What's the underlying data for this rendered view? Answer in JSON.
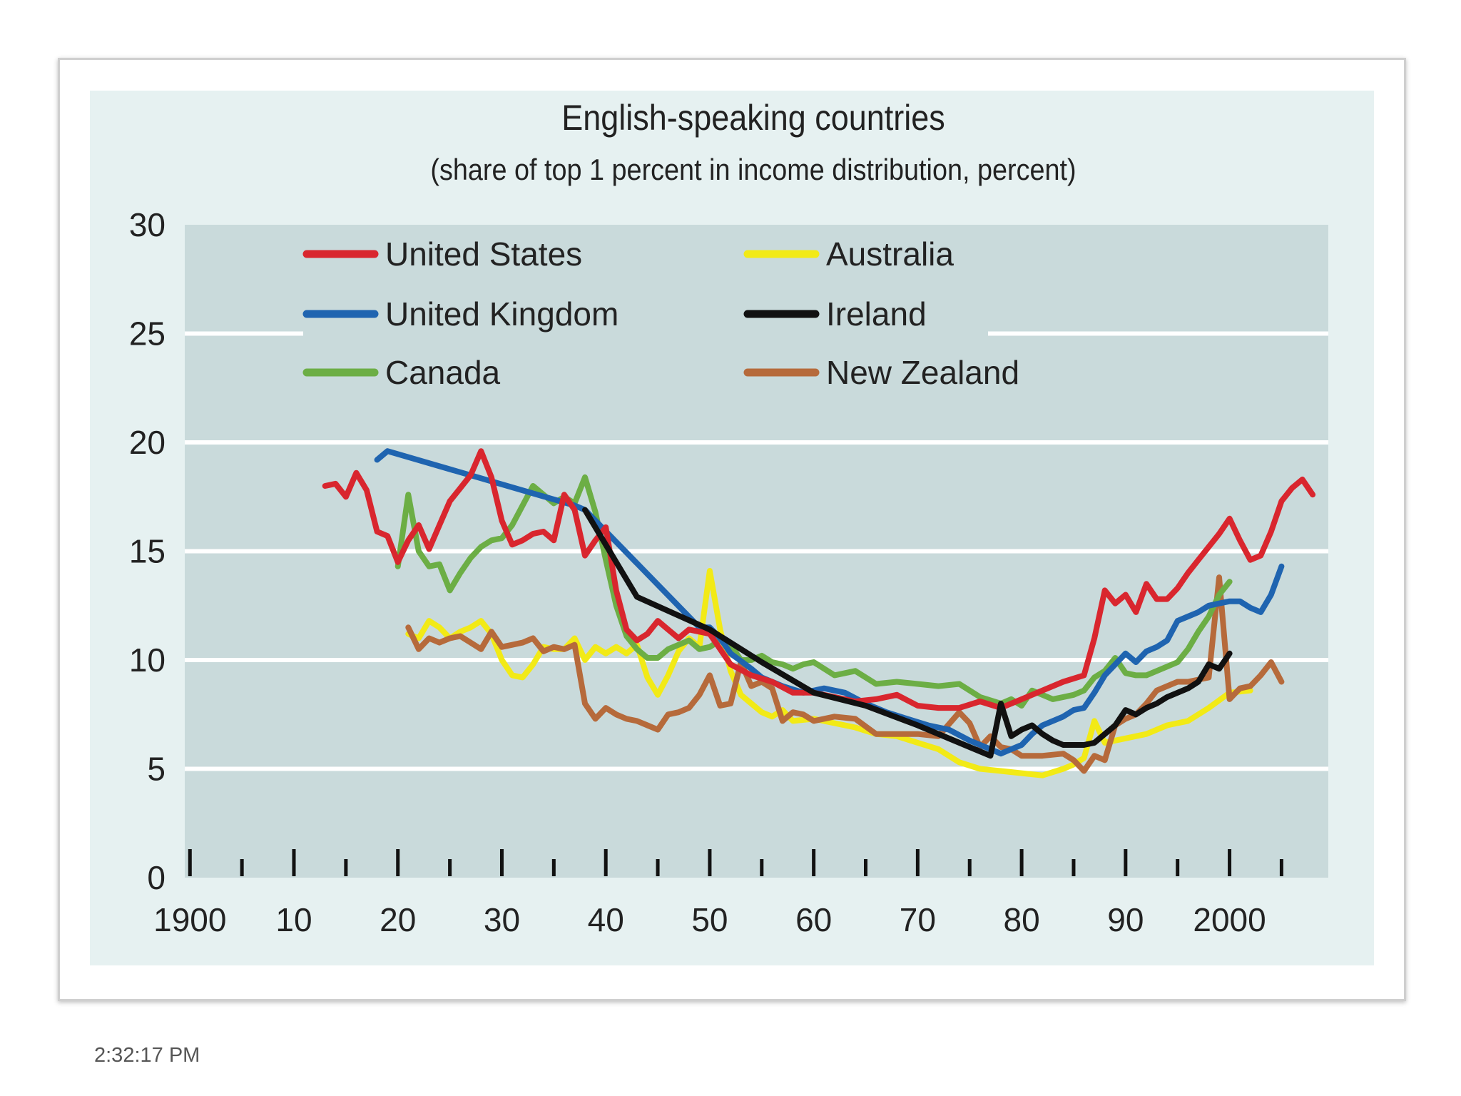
{
  "chart_data": {
    "type": "line",
    "title": "English-speaking countries",
    "subtitle": "(share of top 1 percent in income distribution, percent)",
    "xlabel": "",
    "ylabel": "",
    "xlim": [
      1899.5,
      2009.5
    ],
    "ylim": [
      0,
      30
    ],
    "yticks": [
      0,
      5,
      10,
      15,
      20,
      25,
      30
    ],
    "xticks": [
      1900,
      1910,
      1920,
      1930,
      1940,
      1950,
      1960,
      1970,
      1980,
      1990,
      2000
    ],
    "xtick_labels": [
      "1900",
      "10",
      "20",
      "30",
      "40",
      "50",
      "60",
      "70",
      "80",
      "90",
      "2000"
    ],
    "grid": true,
    "legend_position": "top-left",
    "series": [
      {
        "name": "United States",
        "color": "#d9262e",
        "x": [
          1913,
          1914,
          1915,
          1916,
          1917,
          1918,
          1919,
          1920,
          1921,
          1922,
          1923,
          1924,
          1925,
          1926,
          1927,
          1928,
          1929,
          1930,
          1931,
          1932,
          1933,
          1934,
          1935,
          1936,
          1937,
          1938,
          1939,
          1940,
          1941,
          1942,
          1943,
          1944,
          1945,
          1946,
          1947,
          1948,
          1949,
          1950,
          1952,
          1954,
          1956,
          1958,
          1960,
          1962,
          1964,
          1966,
          1968,
          1970,
          1972,
          1974,
          1976,
          1978,
          1980,
          1982,
          1984,
          1986,
          1987,
          1988,
          1989,
          1990,
          1991,
          1992,
          1993,
          1994,
          1995,
          1996,
          1997,
          1998,
          1999,
          2000,
          2001,
          2002,
          2003,
          2004,
          2005,
          2006,
          2007,
          2008
        ],
        "y": [
          18.0,
          18.1,
          17.5,
          18.6,
          17.8,
          15.9,
          15.7,
          14.5,
          15.5,
          16.2,
          15.1,
          16.2,
          17.3,
          17.9,
          18.5,
          19.6,
          18.4,
          16.4,
          15.3,
          15.5,
          15.8,
          15.9,
          15.5,
          17.6,
          16.9,
          14.8,
          15.5,
          16.1,
          13.2,
          11.4,
          10.9,
          11.2,
          11.8,
          11.4,
          11.0,
          11.4,
          11.3,
          11.2,
          9.8,
          9.3,
          9.0,
          8.5,
          8.5,
          8.3,
          8.1,
          8.2,
          8.4,
          7.9,
          7.8,
          7.8,
          8.1,
          7.8,
          8.2,
          8.6,
          9.0,
          9.3,
          11.0,
          13.2,
          12.6,
          13.0,
          12.2,
          13.5,
          12.8,
          12.8,
          13.3,
          14.0,
          14.6,
          15.2,
          15.8,
          16.5,
          15.5,
          14.6,
          14.8,
          15.9,
          17.3,
          17.9,
          18.3,
          17.6
        ]
      },
      {
        "name": "United Kingdom",
        "color": "#1f64b0",
        "x": [
          1918,
          1919,
          1937,
          1938,
          1949,
          1950,
          1951,
          1952,
          1954,
          1955,
          1957,
          1959,
          1961,
          1963,
          1965,
          1967,
          1969,
          1971,
          1973,
          1975,
          1977,
          1978,
          1979,
          1980,
          1981,
          1982,
          1983,
          1984,
          1985,
          1986,
          1987,
          1988,
          1989,
          1990,
          1991,
          1992,
          1993,
          1994,
          1995,
          1996,
          1997,
          1998,
          1999,
          2000,
          2001,
          2002,
          2003,
          2004,
          2005
        ],
        "y": [
          19.2,
          19.6,
          17.1,
          16.9,
          11.5,
          11.5,
          11.0,
          10.3,
          9.6,
          9.2,
          8.8,
          8.5,
          8.7,
          8.5,
          8.0,
          7.6,
          7.3,
          7.0,
          6.8,
          6.3,
          5.9,
          5.7,
          5.9,
          6.1,
          6.6,
          7.0,
          7.2,
          7.4,
          7.7,
          7.8,
          8.5,
          9.3,
          9.8,
          10.3,
          9.9,
          10.4,
          10.6,
          10.9,
          11.8,
          12.0,
          12.2,
          12.5,
          12.6,
          12.7,
          12.7,
          12.4,
          12.2,
          13.0,
          14.3
        ]
      },
      {
        "name": "Canada",
        "color": "#6cae45",
        "x": [
          1920,
          1921,
          1922,
          1923,
          1924,
          1925,
          1926,
          1927,
          1928,
          1929,
          1930,
          1931,
          1932,
          1933,
          1934,
          1935,
          1936,
          1937,
          1938,
          1939,
          1940,
          1941,
          1942,
          1943,
          1944,
          1945,
          1946,
          1947,
          1948,
          1949,
          1950,
          1951,
          1952,
          1953,
          1954,
          1955,
          1956,
          1957,
          1958,
          1959,
          1960,
          1962,
          1964,
          1966,
          1968,
          1970,
          1972,
          1974,
          1976,
          1978,
          1979,
          1980,
          1981,
          1982,
          1983,
          1984,
          1985,
          1986,
          1987,
          1988,
          1989,
          1990,
          1991,
          1992,
          1993,
          1994,
          1995,
          1996,
          1997,
          1998,
          1999,
          2000
        ],
        "y": [
          14.3,
          17.6,
          15.0,
          14.3,
          14.4,
          13.2,
          14.0,
          14.7,
          15.2,
          15.5,
          15.6,
          16.2,
          17.1,
          18.0,
          17.6,
          17.2,
          17.5,
          17.2,
          18.4,
          16.8,
          14.6,
          12.5,
          11.1,
          10.5,
          10.1,
          10.1,
          10.5,
          10.7,
          10.9,
          10.5,
          10.6,
          10.9,
          10.7,
          10.0,
          10.0,
          10.2,
          9.9,
          9.8,
          9.6,
          9.8,
          9.9,
          9.3,
          9.5,
          8.9,
          9.0,
          8.9,
          8.8,
          8.9,
          8.3,
          8.0,
          8.2,
          7.9,
          8.6,
          8.4,
          8.2,
          8.3,
          8.4,
          8.6,
          9.2,
          9.5,
          10.1,
          9.4,
          9.3,
          9.3,
          9.5,
          9.7,
          9.9,
          10.5,
          11.3,
          12.0,
          13.0,
          13.6
        ]
      },
      {
        "name": "Australia",
        "color": "#f2ea16",
        "x": [
          1921,
          1922,
          1923,
          1924,
          1925,
          1926,
          1927,
          1928,
          1929,
          1930,
          1931,
          1932,
          1933,
          1934,
          1935,
          1936,
          1937,
          1938,
          1939,
          1940,
          1941,
          1942,
          1943,
          1944,
          1945,
          1946,
          1947,
          1948,
          1949,
          1950,
          1951,
          1952,
          1953,
          1954,
          1955,
          1956,
          1957,
          1958,
          1960,
          1962,
          1964,
          1966,
          1968,
          1970,
          1972,
          1974,
          1976,
          1978,
          1980,
          1982,
          1984,
          1985,
          1986,
          1987,
          1988,
          1989,
          1990,
          1992,
          1994,
          1996,
          1998,
          2000,
          2002
        ],
        "y": [
          11.2,
          11.0,
          11.8,
          11.5,
          11.0,
          11.3,
          11.5,
          11.8,
          11.2,
          10.0,
          9.3,
          9.2,
          9.8,
          10.6,
          10.5,
          10.5,
          11.0,
          10.0,
          10.6,
          10.3,
          10.6,
          10.3,
          10.7,
          9.2,
          8.4,
          9.3,
          10.4,
          11.0,
          10.6,
          14.1,
          11.4,
          9.5,
          8.4,
          8.0,
          7.6,
          7.4,
          7.7,
          7.2,
          7.3,
          7.1,
          6.9,
          6.6,
          6.5,
          6.2,
          5.9,
          5.3,
          5.0,
          4.9,
          4.8,
          4.7,
          5.0,
          5.2,
          5.5,
          7.2,
          6.2,
          6.3,
          6.4,
          6.6,
          7.0,
          7.2,
          7.8,
          8.5,
          8.6
        ]
      },
      {
        "name": "Ireland",
        "color": "#111111",
        "x": [
          1938,
          1943,
          1950,
          1955,
          1960,
          1965,
          1970,
          1975,
          1977,
          1978,
          1979,
          1980,
          1981,
          1982,
          1983,
          1984,
          1985,
          1986,
          1987,
          1988,
          1989,
          1990,
          1991,
          1992,
          1993,
          1994,
          1995,
          1996,
          1997,
          1998,
          1999,
          2000
        ],
        "y": [
          16.9,
          12.9,
          11.4,
          9.9,
          8.5,
          7.9,
          7.0,
          6.0,
          5.6,
          8.0,
          6.5,
          6.8,
          7.0,
          6.6,
          6.3,
          6.1,
          6.1,
          6.1,
          6.2,
          6.6,
          7.0,
          7.7,
          7.5,
          7.8,
          8.0,
          8.3,
          8.5,
          8.7,
          9.0,
          9.8,
          9.6,
          10.3
        ]
      },
      {
        "name": "New Zealand",
        "color": "#b66a3b",
        "x": [
          1921,
          1922,
          1923,
          1924,
          1925,
          1926,
          1927,
          1928,
          1929,
          1930,
          1931,
          1932,
          1933,
          1934,
          1935,
          1936,
          1937,
          1938,
          1939,
          1940,
          1941,
          1942,
          1943,
          1944,
          1945,
          1946,
          1947,
          1948,
          1949,
          1950,
          1951,
          1952,
          1953,
          1954,
          1955,
          1956,
          1957,
          1958,
          1959,
          1960,
          1962,
          1964,
          1966,
          1968,
          1970,
          1972,
          1974,
          1975,
          1976,
          1977,
          1978,
          1979,
          1980,
          1982,
          1984,
          1985,
          1986,
          1987,
          1988,
          1989,
          1990,
          1991,
          1992,
          1993,
          1994,
          1995,
          1996,
          1997,
          1998,
          1999,
          2000,
          2001,
          2002,
          2003,
          2004,
          2005
        ],
        "y": [
          11.5,
          10.5,
          11.0,
          10.8,
          11.0,
          11.1,
          10.8,
          10.5,
          11.3,
          10.6,
          10.7,
          10.8,
          11.0,
          10.4,
          10.6,
          10.5,
          10.7,
          8.0,
          7.3,
          7.8,
          7.5,
          7.3,
          7.2,
          7.0,
          6.8,
          7.5,
          7.6,
          7.8,
          8.4,
          9.3,
          7.9,
          8.0,
          9.9,
          8.8,
          9.0,
          8.7,
          7.2,
          7.6,
          7.5,
          7.2,
          7.4,
          7.3,
          6.6,
          6.6,
          6.6,
          6.5,
          7.6,
          7.1,
          6.0,
          6.5,
          6.0,
          5.9,
          5.6,
          5.6,
          5.7,
          5.4,
          4.9,
          5.6,
          5.4,
          7.0,
          7.3,
          7.5,
          8.0,
          8.6,
          8.8,
          9.0,
          9.0,
          9.1,
          9.2,
          13.8,
          8.2,
          8.7,
          8.8,
          9.3,
          9.9,
          9.0
        ]
      }
    ]
  },
  "footer": {
    "timestamp": "2:32:17 PM"
  }
}
